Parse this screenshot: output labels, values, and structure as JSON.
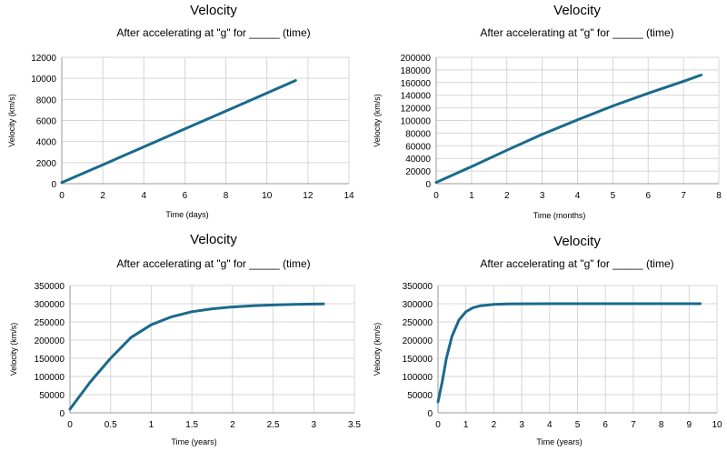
{
  "chart_data": [
    {
      "type": "line",
      "title": "Velocity",
      "subtitle": "After accelerating at \"g\" for _____ (time)",
      "xlabel": "Time (days)",
      "ylabel": "Velocity (km/s)",
      "xlim": [
        0,
        14
      ],
      "ylim": [
        0,
        12000
      ],
      "xticks": [
        0,
        2,
        4,
        6,
        8,
        10,
        12,
        14
      ],
      "yticks": [
        0,
        2000,
        4000,
        6000,
        8000,
        10000,
        12000
      ],
      "grid": true,
      "series": [
        {
          "color": "#1b6a8c",
          "x": [
            0,
            2,
            4,
            6,
            8,
            10,
            11.4
          ],
          "y": [
            100,
            1800,
            3500,
            5200,
            6900,
            8600,
            9800
          ]
        }
      ]
    },
    {
      "type": "line",
      "title": "Velocity",
      "subtitle": "After accelerating at \"g\" for _____ (time)",
      "xlabel": "Time (months)",
      "ylabel": "Velocity (km/s)",
      "xlim": [
        0,
        8
      ],
      "ylim": [
        0,
        200000
      ],
      "xticks": [
        0,
        1,
        2,
        3,
        4,
        5,
        6,
        7,
        8
      ],
      "yticks": [
        0,
        20000,
        40000,
        60000,
        80000,
        100000,
        120000,
        140000,
        160000,
        180000,
        200000
      ],
      "grid": true,
      "series": [
        {
          "color": "#1b6a8c",
          "x": [
            0,
            1,
            2,
            3,
            4,
            5,
            6,
            7,
            7.5
          ],
          "y": [
            2000,
            27000,
            53000,
            78000,
            101000,
            123000,
            143000,
            162000,
            172000
          ]
        }
      ]
    },
    {
      "type": "line",
      "title": "Velocity",
      "subtitle": "After accelerating at \"g\" for _____ (time)",
      "xlabel": "Time (years)",
      "ylabel": "Velocity (km/s)",
      "xlim": [
        0,
        3.5
      ],
      "ylim": [
        0,
        350000
      ],
      "xticks": [
        0,
        0.5,
        1,
        1.5,
        2,
        2.5,
        3,
        3.5
      ],
      "yticks": [
        0,
        50000,
        100000,
        150000,
        200000,
        250000,
        300000,
        350000
      ],
      "grid": true,
      "series": [
        {
          "color": "#1b6a8c",
          "x": [
            0,
            0.1,
            0.25,
            0.5,
            0.75,
            1,
            1.25,
            1.5,
            1.75,
            2,
            2.25,
            2.5,
            2.75,
            3,
            3.12
          ],
          "y": [
            10000,
            40000,
            85000,
            150000,
            207000,
            242000,
            264000,
            278000,
            286000,
            291000,
            294500,
            296500,
            298000,
            299000,
            299500
          ]
        }
      ]
    },
    {
      "type": "line",
      "title": "Velocity",
      "subtitle": "After accelerating at \"g\" for _____ (time)",
      "xlabel": "Time (years)",
      "ylabel": "Velocity (km/s)",
      "xlim": [
        0,
        10
      ],
      "ylim": [
        0,
        350000
      ],
      "xticks": [
        0,
        1,
        2,
        3,
        4,
        5,
        6,
        7,
        8,
        9,
        10
      ],
      "yticks": [
        0,
        50000,
        100000,
        150000,
        200000,
        250000,
        300000,
        350000
      ],
      "grid": true,
      "series": [
        {
          "color": "#1b6a8c",
          "x": [
            0,
            0.15,
            0.3,
            0.5,
            0.75,
            1,
            1.25,
            1.5,
            2,
            2.5,
            3,
            4,
            5,
            6,
            7,
            8,
            9,
            9.4
          ],
          "y": [
            30000,
            85000,
            150000,
            210000,
            255000,
            278000,
            289000,
            294000,
            298000,
            299300,
            299700,
            299900,
            300000,
            300000,
            300000,
            300000,
            300000,
            300000
          ]
        }
      ]
    }
  ]
}
